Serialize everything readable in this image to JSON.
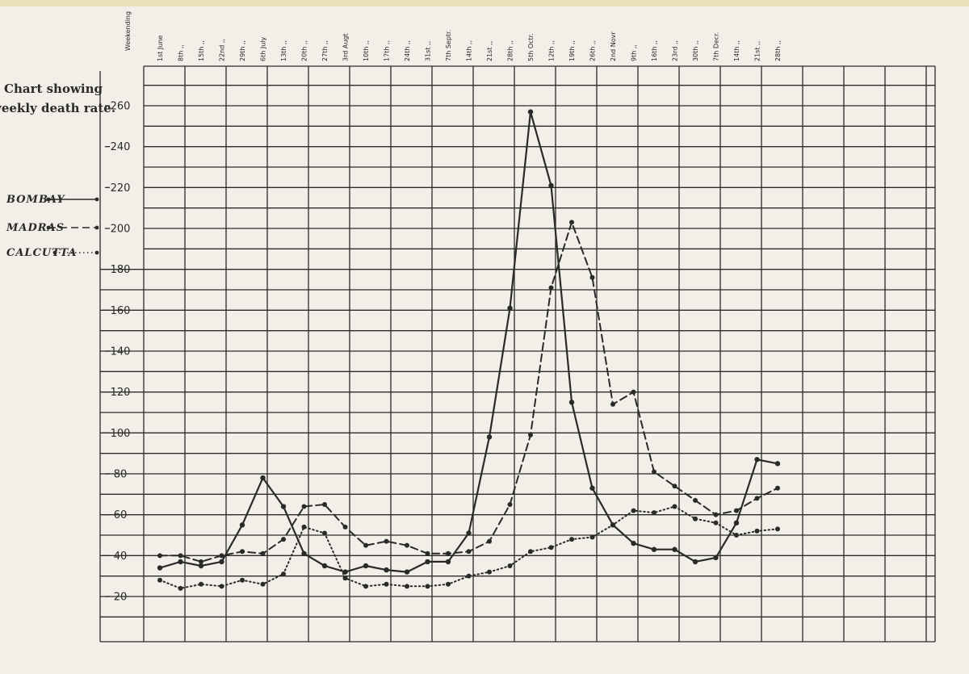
{
  "chart_data": {
    "type": "line",
    "title_lines": [
      "Chart showing",
      "weekly death rate."
    ],
    "x_header": "Weekending",
    "categories": [
      "1st June",
      "8th ,,",
      "15th ,,",
      "22nd ,,",
      "29th ,,",
      "6th July",
      "13th ,,",
      "20th ,,",
      "27th ,,",
      "3rd Augt",
      "10th ,,",
      "17th ,,",
      "24th ,,",
      "31st ,,",
      "7th Septr.",
      "14th ,,",
      "21st ,,",
      "28th ,,",
      "5th Octr.",
      "12th ,,",
      "19th ,,",
      "26th ,,",
      "2nd Novr",
      "9th ,,",
      "16th ,,",
      "23rd ,,",
      "30th ,,",
      "7th Decr.",
      "14th ,,",
      "21st ,,",
      "28th ,,"
    ],
    "y_ticks": [
      20,
      40,
      60,
      80,
      100,
      120,
      140,
      160,
      180,
      200,
      220,
      240,
      260
    ],
    "y_tick_labels": [
      "20",
      "40",
      "60",
      "80",
      "100",
      "120",
      "140",
      "160",
      "180",
      "200",
      "220",
      "240",
      "260"
    ],
    "ylim": [
      0,
      270
    ],
    "grid": true,
    "legend_position": "left",
    "series": [
      {
        "name": "Bombay",
        "style": "solid",
        "color": "#2a2a2a",
        "values": [
          34,
          37,
          35,
          37,
          55,
          78,
          64,
          41,
          35,
          32,
          35,
          33,
          32,
          37,
          37,
          51,
          98,
          161,
          257,
          221,
          115,
          73,
          55,
          46,
          43,
          43,
          37,
          39,
          56,
          87,
          85
        ]
      },
      {
        "name": "Madras",
        "style": "dashed",
        "color": "#2a2a2a",
        "values": [
          40,
          40,
          37,
          40,
          42,
          41,
          48,
          64,
          65,
          54,
          45,
          47,
          45,
          41,
          41,
          42,
          47,
          65,
          99,
          171,
          203,
          176,
          114,
          120,
          81,
          74,
          67,
          60,
          62,
          68,
          73
        ]
      },
      {
        "name": "Calcutta",
        "style": "dotted",
        "color": "#2a2a2a",
        "values": [
          28,
          24,
          26,
          25,
          28,
          26,
          31,
          54,
          51,
          29,
          25,
          26,
          25,
          25,
          26,
          30,
          32,
          35,
          42,
          44,
          48,
          49,
          55,
          62,
          61,
          64,
          58,
          56,
          50,
          52,
          53
        ]
      }
    ]
  }
}
